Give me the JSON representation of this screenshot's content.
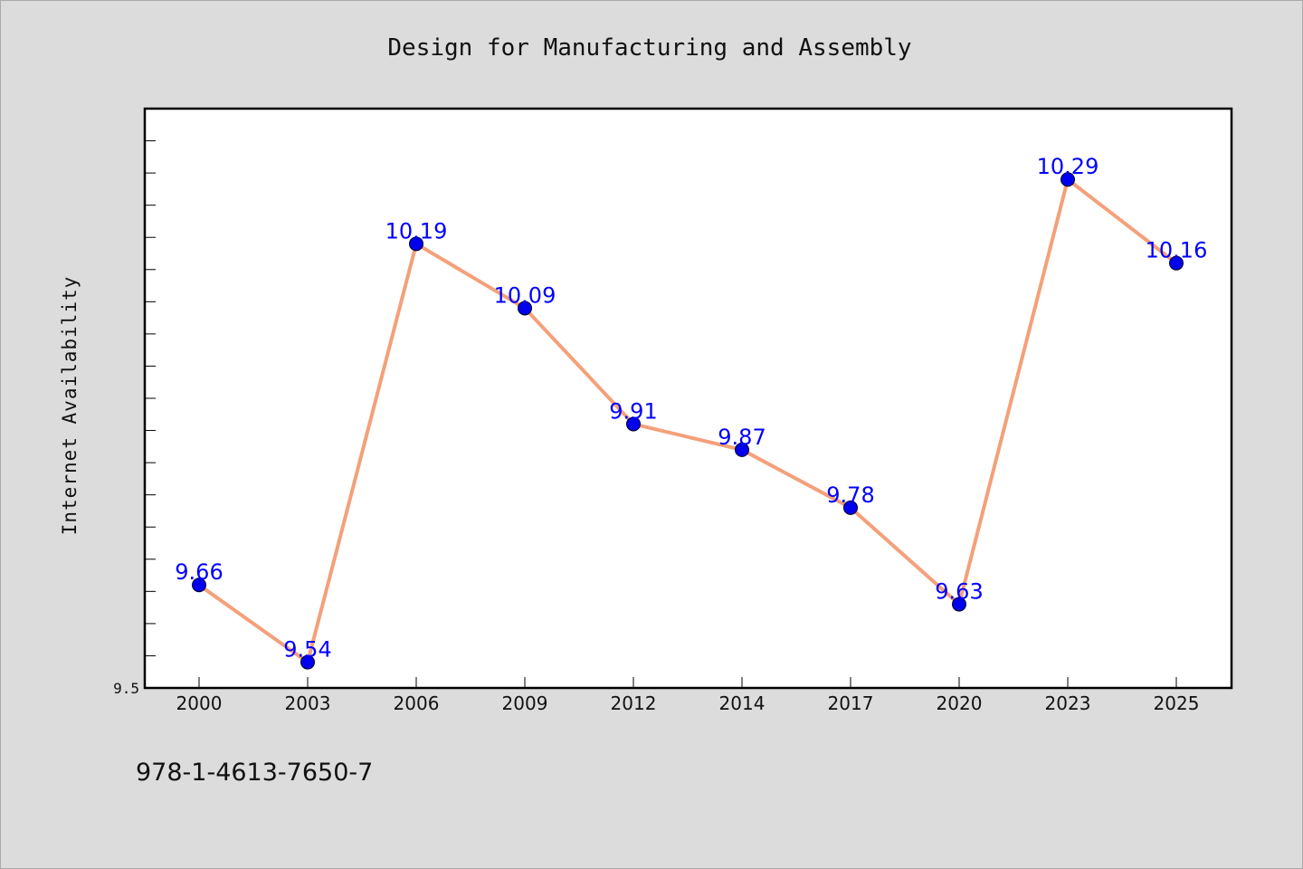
{
  "chart_data": {
    "type": "line",
    "title": "Design for Manufacturing and Assembly",
    "ylabel": "Internet Availability",
    "xlabel": "",
    "categories": [
      "2000",
      "2003",
      "2006",
      "2009",
      "2012",
      "2014",
      "2017",
      "2020",
      "2023",
      "2025"
    ],
    "series": [
      {
        "values": [
          9.66,
          9.54,
          10.19,
          10.09,
          9.91,
          9.87,
          9.78,
          9.63,
          10.29,
          10.16
        ]
      }
    ],
    "data_labels": [
      "9.66",
      "9.54",
      "10.19",
      "10.09",
      "9.91",
      "9.87",
      "9.78",
      "9.63",
      "10.29",
      "10.16"
    ],
    "ylim": [
      9.5,
      10.4
    ],
    "yticks_labeled": [
      {
        "value": 9.5,
        "label": "9.5"
      }
    ],
    "minor_tick_step": 0.05,
    "grid": false,
    "legend": "none",
    "colors": {
      "line": "#f4a07a",
      "marker": "#0000ee",
      "label": "#0000ff",
      "background": "#dcdcdc",
      "plot_area": "#ffffff"
    }
  },
  "footer": {
    "isbn": "978-1-4613-7650-7"
  }
}
